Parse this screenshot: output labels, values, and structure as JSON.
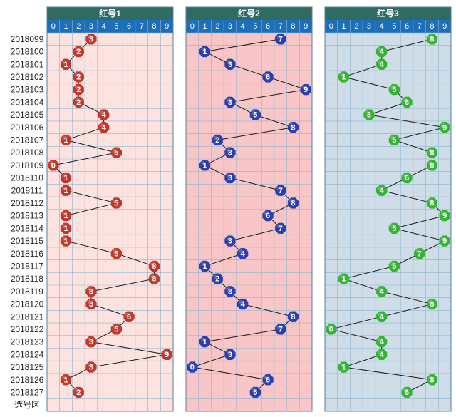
{
  "chart_data": {
    "type": "scatter",
    "row_labels": [
      "2018099",
      "2018100",
      "2018101",
      "2018102",
      "2018103",
      "2018104",
      "2018105",
      "2018106",
      "2018107",
      "2018108",
      "2018109",
      "2018110",
      "2018111",
      "2018112",
      "2018113",
      "2018114",
      "2018115",
      "2018116",
      "2018117",
      "2018118",
      "2018119",
      "2018120",
      "2018121",
      "2018122",
      "2018123",
      "2018124",
      "2018125",
      "2018126",
      "2018127"
    ],
    "footer_label": "选号区",
    "digits": [
      "0",
      "1",
      "2",
      "3",
      "4",
      "5",
      "6",
      "7",
      "8",
      "9"
    ],
    "panels": [
      {
        "name": "红号1",
        "color": "#c0392b",
        "background": "#fde3e0",
        "values": [
          3,
          2,
          1,
          2,
          2,
          2,
          4,
          4,
          1,
          5,
          0,
          1,
          1,
          5,
          1,
          1,
          1,
          5,
          8,
          8,
          3,
          3,
          6,
          5,
          3,
          9,
          3,
          1,
          2
        ]
      },
      {
        "name": "红号2",
        "color": "#2b3fb0",
        "background": "#f8c6c6",
        "values": [
          7,
          1,
          3,
          6,
          9,
          3,
          5,
          8,
          2,
          3,
          1,
          3,
          7,
          8,
          6,
          7,
          3,
          4,
          1,
          2,
          3,
          4,
          8,
          7,
          1,
          3,
          0,
          6,
          5
        ]
      },
      {
        "name": "红号3",
        "color": "#34b334",
        "background": "#cfdde9",
        "values": [
          8,
          4,
          4,
          1,
          5,
          6,
          3,
          9,
          5,
          8,
          8,
          6,
          4,
          8,
          9,
          5,
          9,
          7,
          5,
          1,
          4,
          8,
          4,
          0,
          4,
          4,
          1,
          8,
          6
        ]
      }
    ],
    "colors": {
      "header": "#2e6b62",
      "digit_row": "#1c6fb8",
      "grid": "#8fb4ce"
    }
  }
}
